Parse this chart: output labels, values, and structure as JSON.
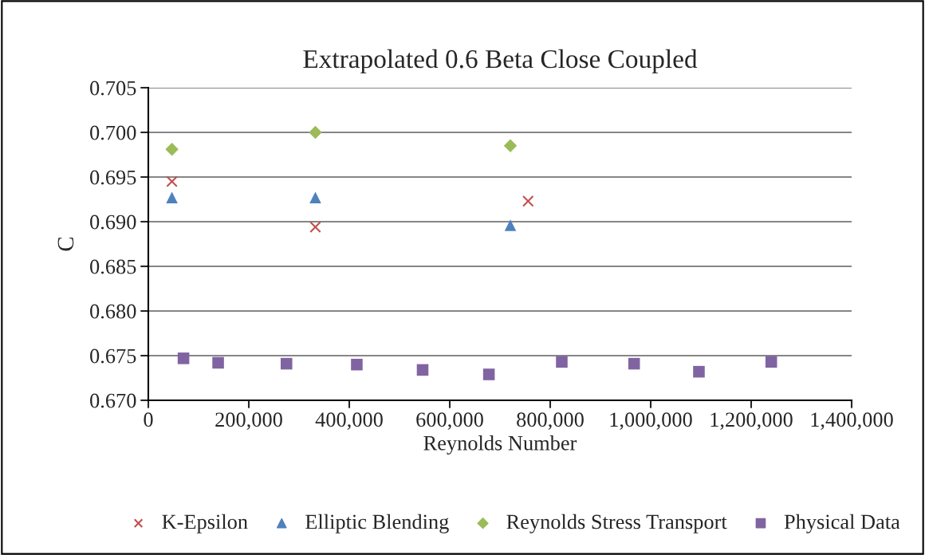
{
  "chart_data": {
    "type": "scatter",
    "title": "Extrapolated 0.6 Beta Close Coupled",
    "xlabel": "Reynolds Number",
    "ylabel": "C",
    "xlim": [
      0,
      1400000
    ],
    "xticks": [
      {
        "value": 0,
        "label": "0"
      },
      {
        "value": 200000,
        "label": "200,000"
      },
      {
        "value": 400000,
        "label": "400,000"
      },
      {
        "value": 600000,
        "label": "600,000"
      },
      {
        "value": 800000,
        "label": "800,000"
      },
      {
        "value": 1000000,
        "label": "1,000,000"
      },
      {
        "value": 1200000,
        "label": "1,200,000"
      },
      {
        "value": 1400000,
        "label": "1,400,000"
      }
    ],
    "ylim": [
      0.67,
      0.705
    ],
    "yticks": [
      {
        "value": 0.67,
        "label": "0.670"
      },
      {
        "value": 0.675,
        "label": "0.675"
      },
      {
        "value": 0.68,
        "label": "0.680"
      },
      {
        "value": 0.685,
        "label": "0.685"
      },
      {
        "value": 0.69,
        "label": "0.690"
      },
      {
        "value": 0.695,
        "label": "0.695"
      },
      {
        "value": 0.7,
        "label": "0.700"
      },
      {
        "value": 0.705,
        "label": "0.705"
      }
    ],
    "grid": "y",
    "legend": "bottom",
    "series": [
      {
        "name": "K-Epsilon",
        "color": "#c0504d",
        "marker": "cross",
        "x": [
          47000,
          332500,
          756000
        ],
        "values": [
          0.6945,
          0.6894,
          0.6923
        ]
      },
      {
        "name": "Elliptic Blending",
        "color": "#4f81bd",
        "marker": "triangle",
        "x": [
          47000,
          332500,
          720700
        ],
        "values": [
          0.6927,
          0.6927,
          0.6896
        ]
      },
      {
        "name": "Reynolds Stress Transport",
        "color": "#9bbb59",
        "marker": "diamond",
        "x": [
          47000,
          332500,
          720700
        ],
        "values": [
          0.6981,
          0.7,
          0.6985
        ]
      },
      {
        "name": "Physical Data",
        "color": "#8064a2",
        "marker": "square",
        "x": [
          70000,
          139000,
          275000,
          415000,
          546000,
          678000,
          823000,
          967000,
          1096000,
          1240000
        ],
        "values": [
          0.6747,
          0.6742,
          0.6741,
          0.674,
          0.6734,
          0.6729,
          0.6743,
          0.6741,
          0.6732,
          0.6743
        ]
      }
    ]
  }
}
